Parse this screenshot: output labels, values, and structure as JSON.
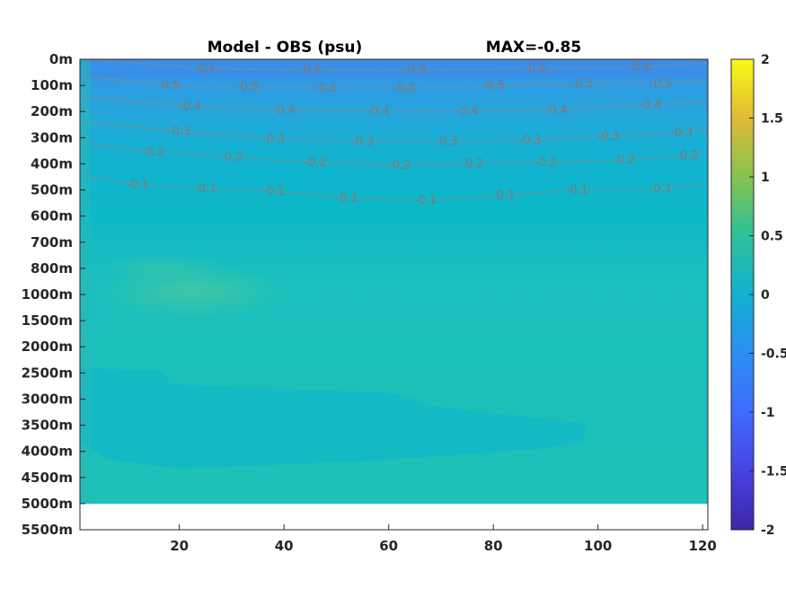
{
  "chart_data": {
    "type": "heatmap",
    "title": "Model - OBS (psu)",
    "annotation": "MAX=-0.85",
    "xlabel": "",
    "ylabel": "",
    "x_ticks": [
      20,
      40,
      60,
      80,
      100,
      120
    ],
    "xlim": [
      1,
      121
    ],
    "y_ticks": [
      "0m",
      "100m",
      "200m",
      "300m",
      "400m",
      "500m",
      "600m",
      "700m",
      "800m",
      "1000m",
      "1500m",
      "2000m",
      "2500m",
      "3000m",
      "3500m",
      "4000m",
      "4500m",
      "5000m",
      "5500m"
    ],
    "data_bottom_depth_label": "5000m",
    "colorbar": {
      "ticks": [
        2,
        1.5,
        1,
        0.5,
        0,
        -0.5,
        -1,
        -1.5,
        -2
      ],
      "tick_labels": [
        "2",
        "1.5",
        "1",
        "0.5",
        "0",
        "-0.5",
        "-1",
        "-1.5",
        "-2"
      ],
      "clim": [
        -2,
        2
      ],
      "colormap": "parula"
    },
    "colors": {
      "surface_layer": "#3a8ee8",
      "upper_layer": "#2aa8d8",
      "mid_layer": "#0fb6c8",
      "deep_layer": "#1ec1b6",
      "warm_patch": "#4ac8a0",
      "bottom_band": "#1bbdbb",
      "contour": "#8a8a8a"
    },
    "contours": [
      {
        "level": "-0.1",
        "depth_label": "500m"
      },
      {
        "level": "-0.2",
        "depth_label": "400m"
      },
      {
        "level": "-0.3",
        "depth_label": "300m"
      },
      {
        "level": "-0.4",
        "depth_label": "200m"
      }
    ],
    "contour_labels": [
      {
        "text": "-0.1",
        "x": 12,
        "depth_index": 4.8
      },
      {
        "text": "-0.1",
        "x": 25,
        "depth_index": 4.95
      },
      {
        "text": "-0.1",
        "x": 38,
        "depth_index": 5.05
      },
      {
        "text": "-0.1",
        "x": 52,
        "depth_index": 5.3
      },
      {
        "text": "-0.1",
        "x": 67,
        "depth_index": 5.4
      },
      {
        "text": "-0.1",
        "x": 82,
        "depth_index": 5.2
      },
      {
        "text": "-0.1",
        "x": 96,
        "depth_index": 5.0
      },
      {
        "text": "-0.1",
        "x": 112,
        "depth_index": 4.95
      },
      {
        "text": "-0.2",
        "x": 15,
        "depth_index": 3.55
      },
      {
        "text": "-0.2",
        "x": 30,
        "depth_index": 3.75
      },
      {
        "text": "-0.2",
        "x": 46,
        "depth_index": 3.95
      },
      {
        "text": "-0.2",
        "x": 62,
        "depth_index": 4.05
      },
      {
        "text": "-0.2",
        "x": 76,
        "depth_index": 4.0
      },
      {
        "text": "-0.2",
        "x": 90,
        "depth_index": 3.95
      },
      {
        "text": "-0.2",
        "x": 105,
        "depth_index": 3.85
      },
      {
        "text": "-0.2",
        "x": 117,
        "depth_index": 3.7
      },
      {
        "text": "-0.3",
        "x": 20,
        "depth_index": 2.75
      },
      {
        "text": "-0.3",
        "x": 38,
        "depth_index": 3.05
      },
      {
        "text": "-0.3",
        "x": 55,
        "depth_index": 3.15
      },
      {
        "text": "-0.3",
        "x": 71,
        "depth_index": 3.15
      },
      {
        "text": "-0.3",
        "x": 87,
        "depth_index": 3.1
      },
      {
        "text": "-0.3",
        "x": 102,
        "depth_index": 2.95
      },
      {
        "text": "-0.3",
        "x": 116,
        "depth_index": 2.8
      },
      {
        "text": "-0.4",
        "x": 22,
        "depth_index": 1.8
      },
      {
        "text": "-0.4",
        "x": 40,
        "depth_index": 1.95
      },
      {
        "text": "-0.4",
        "x": 58,
        "depth_index": 2.0
      },
      {
        "text": "-0.4",
        "x": 75,
        "depth_index": 2.0
      },
      {
        "text": "-0.4",
        "x": 92,
        "depth_index": 1.95
      },
      {
        "text": "-0.4",
        "x": 110,
        "depth_index": 1.75
      },
      {
        "text": "-0.5",
        "x": 18,
        "depth_index": 1.0
      },
      {
        "text": "-0.5",
        "x": 33,
        "depth_index": 1.05
      },
      {
        "text": "-0.5",
        "x": 48,
        "depth_index": 1.1
      },
      {
        "text": "-0.5",
        "x": 63,
        "depth_index": 1.1
      },
      {
        "text": "-0.5",
        "x": 80,
        "depth_index": 1.0
      },
      {
        "text": "-0.5",
        "x": 97,
        "depth_index": 0.95
      },
      {
        "text": "-0.5",
        "x": 112,
        "depth_index": 0.95
      },
      {
        "text": "-0.6",
        "x": 25,
        "depth_index": 0.35
      },
      {
        "text": "-0.6",
        "x": 45,
        "depth_index": 0.4
      },
      {
        "text": "-0.6",
        "x": 65,
        "depth_index": 0.4
      },
      {
        "text": "-0.6",
        "x": 88,
        "depth_index": 0.35
      },
      {
        "text": "-0.6",
        "x": 108,
        "depth_index": 0.3
      }
    ]
  }
}
